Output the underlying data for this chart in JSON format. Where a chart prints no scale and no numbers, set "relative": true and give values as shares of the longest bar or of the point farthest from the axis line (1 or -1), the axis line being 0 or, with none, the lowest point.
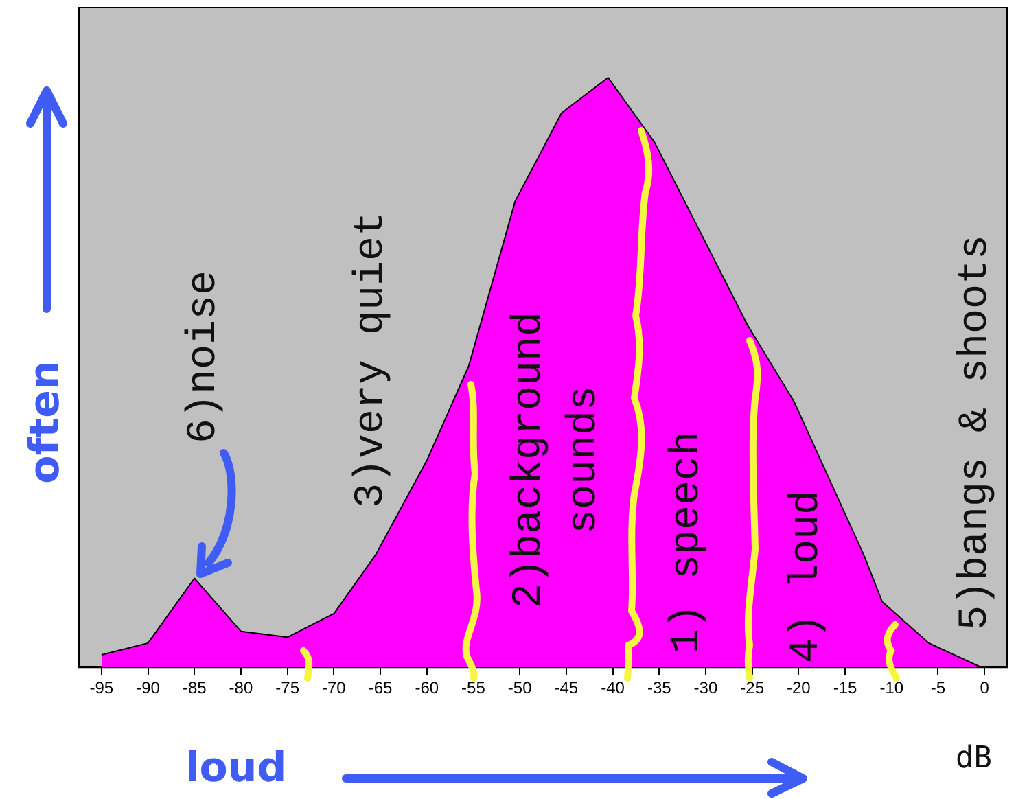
{
  "chart_data": {
    "type": "area",
    "relative": true,
    "xlabel": "loud",
    "ylabel": "often",
    "xlim": [
      -97.5,
      2.5
    ],
    "xticks": [
      -95,
      -90,
      -85,
      -80,
      -75,
      -70,
      -65,
      -60,
      -55,
      -50,
      -45,
      -40,
      -35,
      -30,
      -25,
      -20,
      -15,
      -10,
      -5,
      0
    ],
    "grid": false,
    "legend": false,
    "marker": "none",
    "series": [
      {
        "color": "#ff00ff",
        "x": [
          -95,
          -90,
          -85,
          -80,
          -75,
          -70,
          -65.5,
          -60,
          -55.5,
          -50.5,
          -45.5,
          -40.5,
          -35.5,
          -25.5,
          -20.5,
          -13,
          -11,
          -6,
          -0.5
        ],
        "values": [
          0.02,
          0.04,
          0.15,
          0.06,
          0.05,
          0.09,
          0.19,
          0.35,
          0.51,
          0.79,
          0.94,
          1,
          0.89,
          0.58,
          0.45,
          0.19,
          0.11,
          0.04,
          0
        ]
      }
    ],
    "annotations": [
      "6)noise",
      "3)very quiet",
      "2)background\nsounds",
      "1) speech",
      "4) loud",
      "5)bangs & shoots",
      "dB"
    ]
  }
}
